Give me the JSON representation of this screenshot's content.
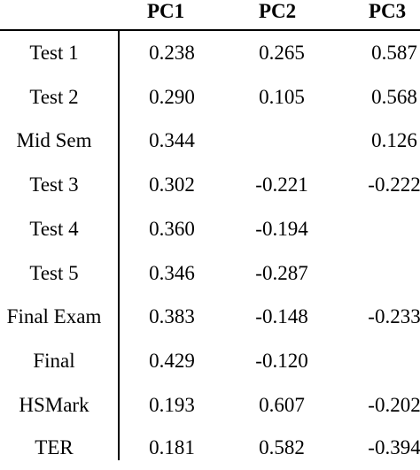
{
  "table": {
    "headers": [
      "",
      "PC1",
      "PC2",
      "PC3"
    ],
    "rows": [
      {
        "label": "Test 1",
        "pc1": "0.238",
        "pc2": "0.265",
        "pc3": "0.587"
      },
      {
        "label": "Test 2",
        "pc1": "0.290",
        "pc2": "0.105",
        "pc3": "0.568"
      },
      {
        "label": "Mid Sem",
        "pc1": "0.344",
        "pc2": "",
        "pc3": "0.126"
      },
      {
        "label": "Test 3",
        "pc1": "0.302",
        "pc2": "-0.221",
        "pc3": "-0.222"
      },
      {
        "label": "Test 4",
        "pc1": "0.360",
        "pc2": "-0.194",
        "pc3": ""
      },
      {
        "label": "Test 5",
        "pc1": "0.346",
        "pc2": "-0.287",
        "pc3": ""
      },
      {
        "label": "Final Exam",
        "pc1": "0.383",
        "pc2": "-0.148",
        "pc3": "-0.233"
      },
      {
        "label": "Final",
        "pc1": "0.429",
        "pc2": "-0.120",
        "pc3": ""
      },
      {
        "label": "HSMark",
        "pc1": "0.193",
        "pc2": "0.607",
        "pc3": "-0.202"
      },
      {
        "label": "TER",
        "pc1": "0.181",
        "pc2": "0.582",
        "pc3": "-0.394"
      }
    ]
  }
}
